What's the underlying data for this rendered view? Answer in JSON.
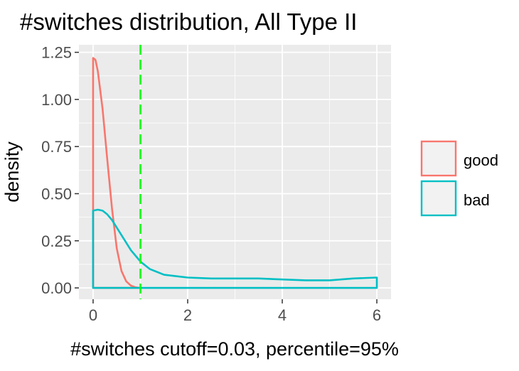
{
  "chart_data": {
    "type": "area",
    "title": "#switches distribution, All Type II",
    "xlabel": "#switches cutoff=0.03, percentile=95%",
    "ylabel": "density",
    "xlim": [
      -0.3,
      6.3
    ],
    "ylim": [
      -0.06,
      1.29
    ],
    "x_ticks": [
      0,
      2,
      4,
      6
    ],
    "x_tick_labels": [
      "0",
      "2",
      "4",
      "6"
    ],
    "y_ticks": [
      0,
      0.25,
      0.5,
      0.75,
      1.0,
      1.25
    ],
    "y_tick_labels": [
      "0.00",
      "0.25",
      "0.50",
      "0.75",
      "1.00",
      "1.25"
    ],
    "grid": true,
    "legend_position": "right",
    "cutoff_line": {
      "x": 1,
      "color": "#00ff00",
      "style": "dashed"
    },
    "series": [
      {
        "name": "good",
        "color": "#f8766d",
        "x": [
          0,
          0.05,
          0.1,
          0.2,
          0.3,
          0.4,
          0.5,
          0.6,
          0.7,
          0.8,
          0.9,
          1.0
        ],
        "y": [
          1.22,
          1.21,
          1.15,
          0.95,
          0.68,
          0.42,
          0.21,
          0.09,
          0.035,
          0.012,
          0.003,
          0.0
        ]
      },
      {
        "name": "bad",
        "color": "#00bfc4",
        "x": [
          0,
          0.1,
          0.2,
          0.3,
          0.4,
          0.5,
          0.6,
          0.7,
          0.8,
          0.9,
          1.0,
          1.2,
          1.5,
          2.0,
          2.5,
          3.0,
          3.5,
          4.0,
          4.5,
          5.0,
          5.5,
          6.0
        ],
        "y": [
          0.41,
          0.415,
          0.41,
          0.39,
          0.36,
          0.32,
          0.28,
          0.24,
          0.2,
          0.17,
          0.14,
          0.1,
          0.07,
          0.055,
          0.05,
          0.05,
          0.05,
          0.045,
          0.04,
          0.04,
          0.05,
          0.055
        ]
      }
    ]
  }
}
